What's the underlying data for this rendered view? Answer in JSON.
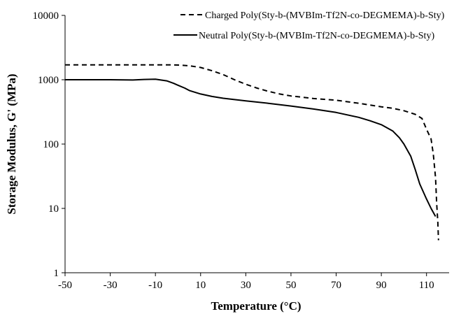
{
  "chart_data": {
    "type": "line",
    "title": "",
    "xlabel": "Temperature  (°C)",
    "ylabel": "Storage Modulus, G' (MPa)",
    "xlim": [
      -50,
      120
    ],
    "ylim": [
      1,
      10000
    ],
    "yscale": "log",
    "grid": false,
    "legend_position": "top-right",
    "x_ticks": [
      "-50",
      "-30",
      "-10",
      "10",
      "30",
      "50",
      "70",
      "90",
      "110"
    ],
    "y_ticks": [
      "1",
      "10",
      "100",
      "1000",
      "10000"
    ],
    "series": [
      {
        "name": "Charged Poly(Sty-b-(MVBIm-Tf2N-co-DEGMEMA)-b-Sty)",
        "style": "dashed",
        "color": "#000000",
        "x": [
          -50,
          -30,
          -10,
          -3,
          0,
          5,
          10,
          15,
          20,
          25,
          30,
          35,
          40,
          45,
          50,
          55,
          60,
          70,
          80,
          90,
          95,
          100,
          105,
          108,
          110,
          112,
          113,
          114,
          114.5,
          115,
          115.3
        ],
        "y": [
          1700,
          1700,
          1700,
          1700,
          1690,
          1650,
          1550,
          1380,
          1200,
          1000,
          850,
          740,
          660,
          600,
          560,
          535,
          510,
          480,
          430,
          380,
          360,
          330,
          290,
          250,
          170,
          120,
          70,
          30,
          12,
          6,
          3.2
        ]
      },
      {
        "name": "Neutral Poly(Sty-b-(MVBIm-Tf2N-co-DEGMEMA)-b-Sty)",
        "style": "solid",
        "color": "#000000",
        "x": [
          -50,
          -30,
          -20,
          -15,
          -10,
          -5,
          -2,
          0,
          3,
          5,
          10,
          15,
          20,
          30,
          40,
          50,
          60,
          70,
          80,
          85,
          90,
          95,
          98,
          100,
          103,
          105,
          107,
          110,
          112,
          114
        ],
        "y": [
          1000,
          1000,
          990,
          1010,
          1020,
          960,
          880,
          820,
          740,
          680,
          600,
          550,
          515,
          470,
          430,
          390,
          350,
          310,
          260,
          230,
          200,
          160,
          125,
          100,
          65,
          40,
          24,
          14,
          10,
          7.5
        ]
      }
    ]
  }
}
